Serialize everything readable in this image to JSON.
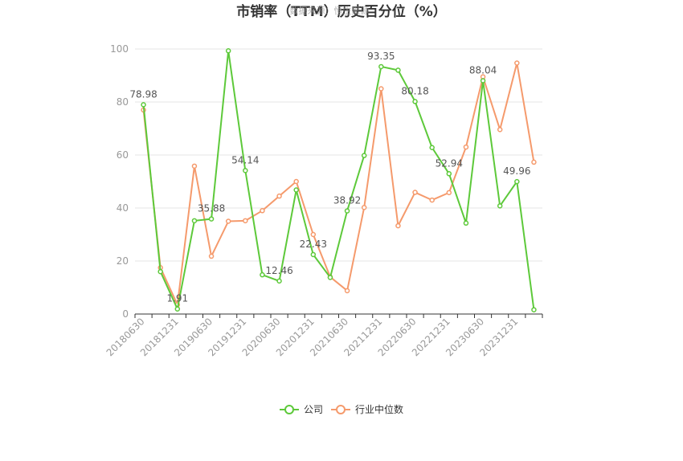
{
  "chart_data": {
    "type": "line",
    "title": "市销率（TTM）历史百分位（%）",
    "watermark": "数据来源：恒生聚源",
    "xlabel": "",
    "ylabel": "",
    "ylim": [
      0,
      100
    ],
    "yticks": [
      0,
      20,
      40,
      60,
      80,
      100
    ],
    "grid": true,
    "legend_position": "bottom",
    "categories": [
      "20180630",
      "20180930",
      "20181231",
      "20190331",
      "20190630",
      "20190930",
      "20191231",
      "20200331",
      "20200630",
      "20200930",
      "20201231",
      "20210331",
      "20210630",
      "20210930",
      "20211231",
      "20220331",
      "20220630",
      "20220930",
      "20221231",
      "20230331",
      "20230630",
      "20230930",
      "20231231",
      "20240331"
    ],
    "xtick_labels": [
      "20180630",
      "20181231",
      "20190630",
      "20191231",
      "20200630",
      "20201231",
      "20210630",
      "20211231",
      "20220630",
      "20221231",
      "20230630",
      "20231231"
    ],
    "series": [
      {
        "name": "公司",
        "color": "#5dc93a",
        "values": [
          78.98,
          16.0,
          1.91,
          35.2,
          35.88,
          99.3,
          54.14,
          14.8,
          12.46,
          46.8,
          22.43,
          13.8,
          38.92,
          59.8,
          93.35,
          92.0,
          80.18,
          62.8,
          52.94,
          34.3,
          88.04,
          40.8,
          49.96,
          1.6
        ],
        "labels": {
          "0": "78.98",
          "2": "1.91",
          "4": "35.88",
          "6": "54.14",
          "8": "12.46",
          "10": "22.43",
          "12": "38.92",
          "14": "93.35",
          "16": "80.18",
          "18": "52.94",
          "20": "88.04",
          "22": "49.96"
        }
      },
      {
        "name": "行业中位数",
        "color": "#f59a6c",
        "values": [
          77.0,
          17.5,
          3.5,
          55.8,
          21.8,
          35.0,
          35.2,
          39.0,
          44.5,
          50.0,
          30.0,
          14.0,
          8.8,
          40.2,
          85.0,
          33.3,
          45.9,
          43.0,
          45.8,
          63.0,
          89.5,
          69.6,
          94.7,
          57.3
        ]
      }
    ]
  }
}
